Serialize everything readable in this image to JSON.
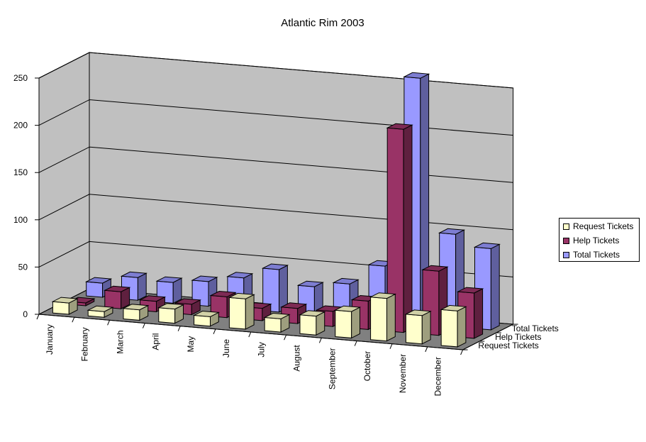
{
  "chart_data": {
    "type": "bar",
    "title": "Atlantic Rim 2003",
    "categories": [
      "January",
      "February",
      "March",
      "April",
      "May",
      "June",
      "July",
      "August",
      "September",
      "October",
      "November",
      "December"
    ],
    "depth_labels": [
      "Total Tickets",
      "Help Tickets",
      "Request Tickets"
    ],
    "series": [
      {
        "name": "Request Tickets",
        "color": "#ffffcc",
        "values": [
          12,
          6,
          11,
          15,
          10,
          32,
          14,
          20,
          28,
          45,
          30,
          38
        ]
      },
      {
        "name": "Help Tickets",
        "color": "#993366",
        "values": [
          3,
          18,
          11,
          11,
          22,
          13,
          16,
          16,
          30,
          215,
          68,
          48
        ]
      },
      {
        "name": "Total Tickets",
        "color": "#9999ff",
        "values": [
          15,
          24,
          22,
          26,
          33,
          45,
          30,
          36,
          58,
          260,
          98,
          86
        ]
      }
    ],
    "ylim": [
      0,
      250
    ],
    "yticks": [
      "0",
      "50",
      "100",
      "150",
      "200",
      "250"
    ],
    "grid": true,
    "wall_color": "#c0c0c0",
    "floor_color": "#808080",
    "legend_position": "right"
  }
}
